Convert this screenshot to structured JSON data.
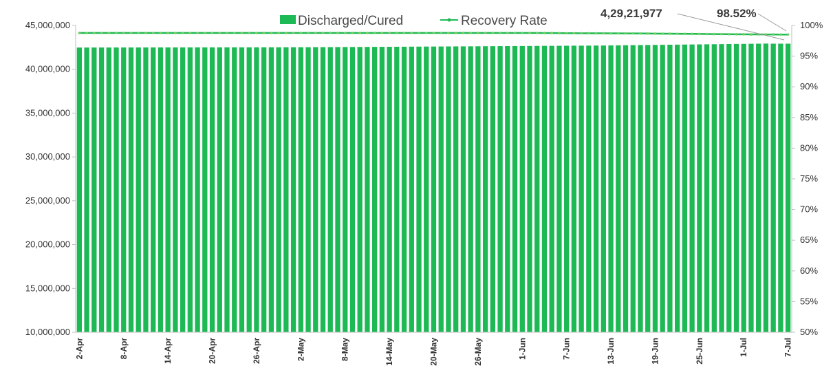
{
  "chart_data": {
    "type": "bar",
    "title": "",
    "xlabel": "",
    "ylabel": "",
    "y_left_ticks": [
      "10,000,000",
      "15,000,000",
      "20,000,000",
      "25,000,000",
      "30,000,000",
      "35,000,000",
      "40,000,000",
      "45,000,000"
    ],
    "y_right_ticks": [
      "50%",
      "55%",
      "60%",
      "65%",
      "70%",
      "75%",
      "80%",
      "85%",
      "90%",
      "95%",
      "100%"
    ],
    "ylim_left": [
      10000000,
      45000000
    ],
    "ylim_right": [
      50,
      100
    ],
    "x_ticks": [
      "2-Apr",
      "8-Apr",
      "14-Apr",
      "20-Apr",
      "26-Apr",
      "2-May",
      "8-May",
      "14-May",
      "20-May",
      "26-May",
      "1-Jun",
      "7-Jun",
      "13-Jun",
      "19-Jun",
      "25-Jun",
      "1-Jul",
      "7-Jul"
    ],
    "x_start": "2-Apr",
    "x_end": "7-Jul",
    "grid": false,
    "legend_position": "top",
    "series": [
      {
        "name": "Discharged/Cured",
        "kind": "bar",
        "axis": "left",
        "color": "#1db954",
        "values": [
          42480000,
          42482000,
          42484000,
          42485000,
          42487000,
          42488000,
          42490000,
          42491000,
          42492000,
          42493000,
          42494000,
          42495000,
          42496000,
          42497000,
          42498000,
          42499000,
          42500000,
          42501000,
          42502000,
          42503000,
          42504000,
          42505000,
          42506000,
          42507000,
          42508000,
          42509000,
          42510000,
          42512000,
          42514000,
          42516000,
          42518000,
          42520000,
          42523000,
          42526000,
          42530000,
          42534000,
          42538000,
          42542000,
          42546000,
          42550000,
          42555000,
          42560000,
          42565000,
          42570000,
          42575000,
          42580000,
          42585000,
          42590000,
          42595000,
          42600000,
          42605000,
          42610000,
          42615000,
          42620000,
          42625000,
          42630000,
          42635000,
          42640000,
          42645000,
          42650000,
          42655000,
          42660000,
          42665000,
          42670000,
          42675000,
          42680000,
          42685000,
          42690000,
          42695000,
          42700000,
          42705000,
          42710000,
          42720000,
          42730000,
          42740000,
          42750000,
          42760000,
          42770000,
          42780000,
          42790000,
          42800000,
          42810000,
          42820000,
          42830000,
          42840000,
          42850000,
          42860000,
          42870000,
          42880000,
          42890000,
          42900000,
          42910000,
          42920000,
          42930000,
          42921977,
          42921977,
          42921977
        ]
      },
      {
        "name": "Recovery Rate",
        "kind": "line",
        "axis": "right",
        "color": "#1db954",
        "values": [
          98.78,
          98.78,
          98.78,
          98.78,
          98.78,
          98.78,
          98.78,
          98.78,
          98.78,
          98.78,
          98.78,
          98.78,
          98.78,
          98.78,
          98.78,
          98.78,
          98.78,
          98.78,
          98.78,
          98.78,
          98.78,
          98.78,
          98.78,
          98.78,
          98.78,
          98.78,
          98.78,
          98.78,
          98.78,
          98.78,
          98.78,
          98.78,
          98.78,
          98.78,
          98.78,
          98.78,
          98.78,
          98.78,
          98.78,
          98.78,
          98.78,
          98.78,
          98.78,
          98.78,
          98.78,
          98.78,
          98.78,
          98.78,
          98.78,
          98.78,
          98.78,
          98.78,
          98.78,
          98.78,
          98.78,
          98.78,
          98.78,
          98.78,
          98.78,
          98.78,
          98.78,
          98.78,
          98.78,
          98.77,
          98.76,
          98.75,
          98.74,
          98.74,
          98.73,
          98.73,
          98.72,
          98.72,
          98.71,
          98.71,
          98.7,
          98.7,
          98.69,
          98.68,
          98.67,
          98.66,
          98.65,
          98.64,
          98.63,
          98.62,
          98.61,
          98.6,
          98.59,
          98.58,
          98.57,
          98.56,
          98.55,
          98.54,
          98.54,
          98.53,
          98.53,
          98.52,
          98.52
        ]
      }
    ],
    "annotations": [
      {
        "text": "4,29,21,977",
        "points_to": "Discharged/Cured",
        "at_x": "7-Jul"
      },
      {
        "text": "98.52%",
        "points_to": "Recovery Rate",
        "at_x": "7-Jul"
      }
    ]
  }
}
